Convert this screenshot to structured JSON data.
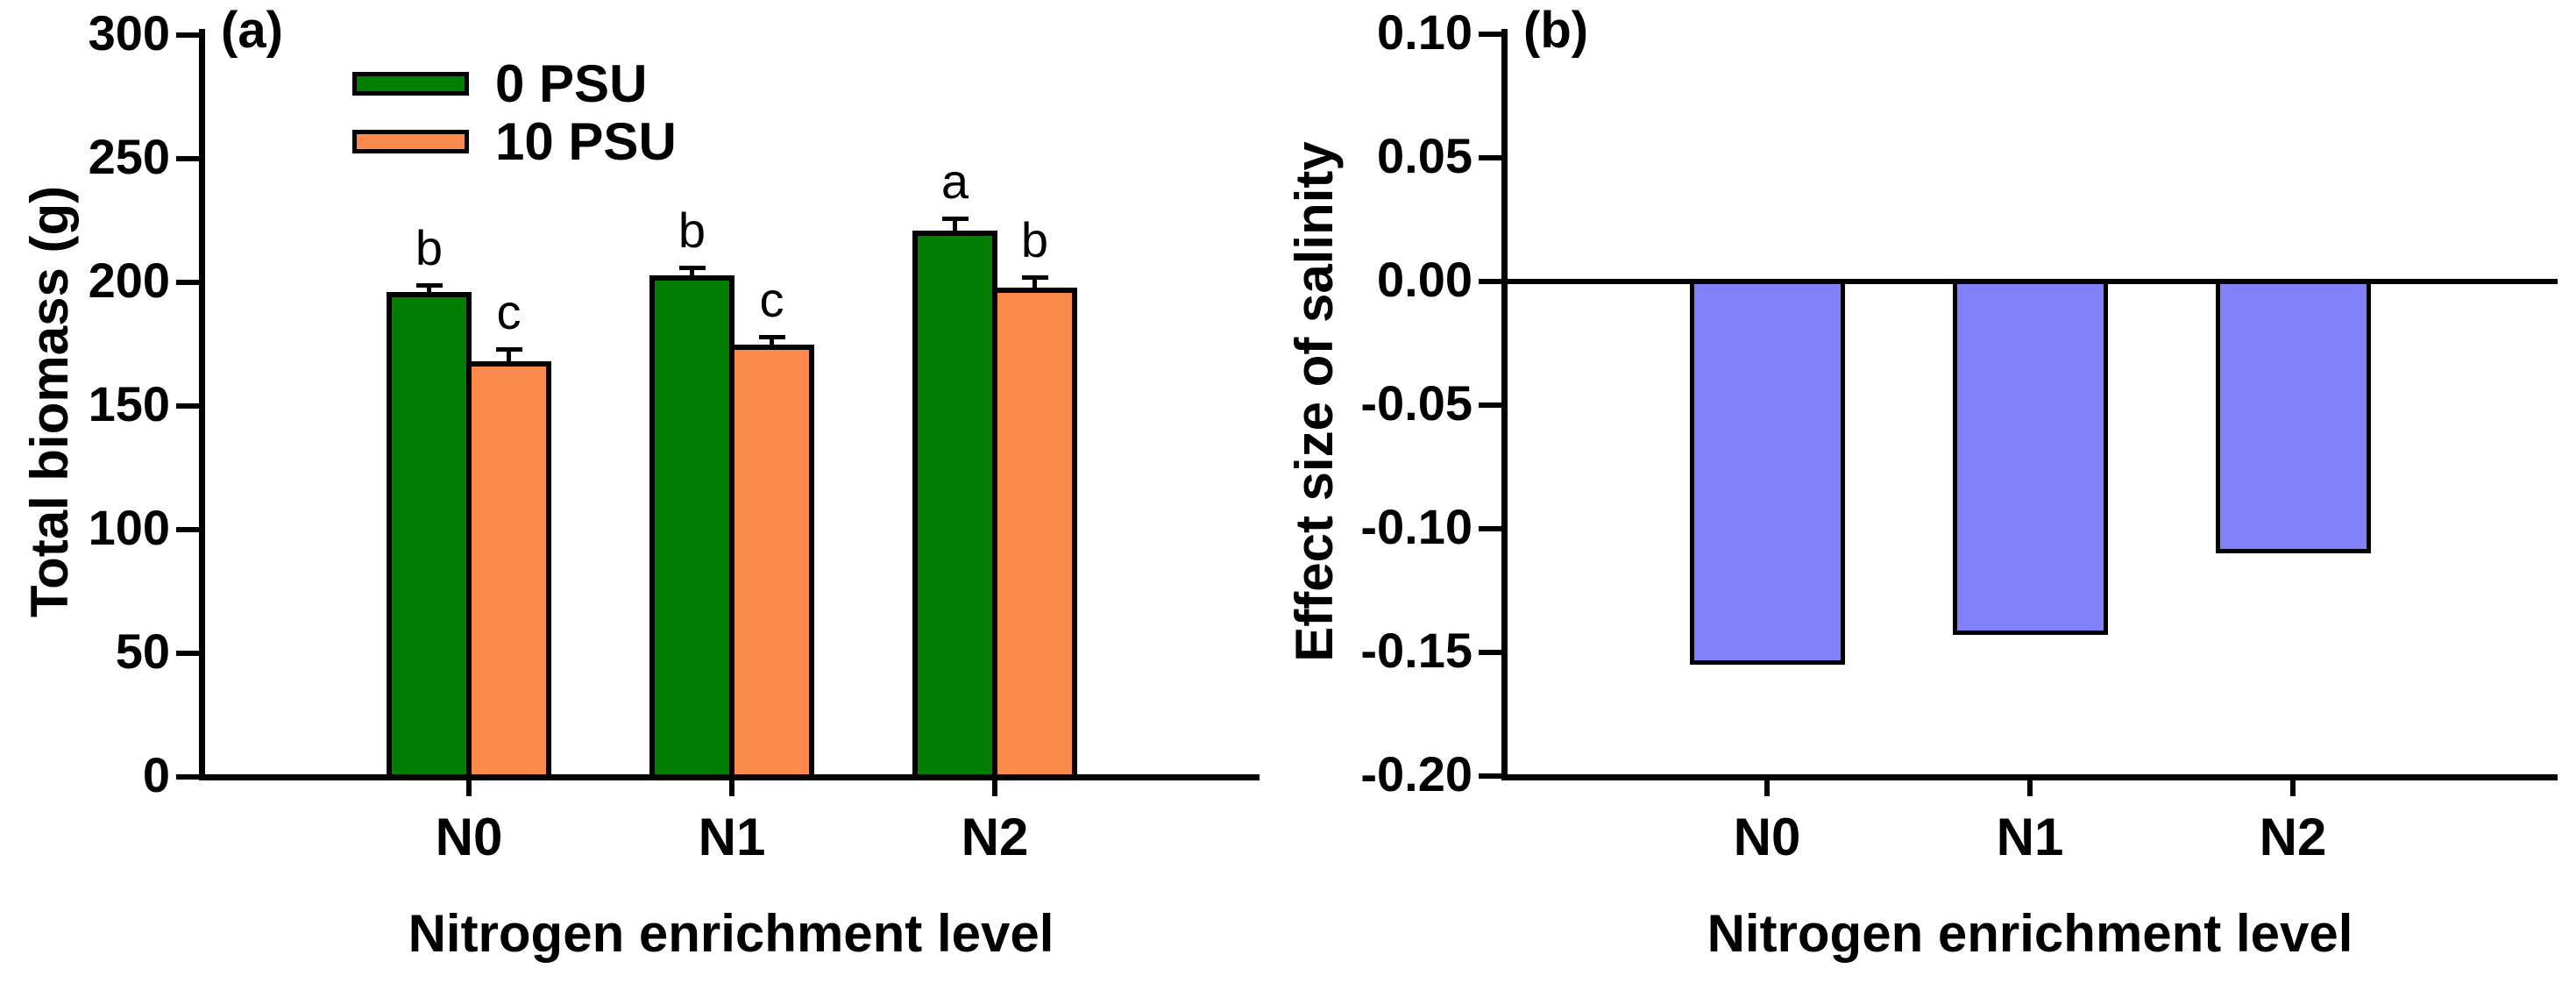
{
  "figure_title": "",
  "chart_data": [
    {
      "type": "bar",
      "panel_label": "(a)",
      "categories": [
        "N0",
        "N1",
        "N2"
      ],
      "series": [
        {
          "name": "0 PSU",
          "color": "#027e02",
          "values": [
            196,
            203,
            221
          ],
          "errors": [
            3,
            3,
            5
          ],
          "sig_letters": [
            "b",
            "b",
            "a"
          ]
        },
        {
          "name": "10 PSU",
          "color": "#fc8a4c",
          "values": [
            168,
            175,
            198
          ],
          "errors": [
            5,
            3,
            4
          ],
          "sig_letters": [
            "c",
            "c",
            "b"
          ]
        }
      ],
      "xlabel": "Nitrogen enrichment level",
      "ylabel": "Total biomass (g)",
      "ylim": [
        0,
        300
      ],
      "yticks": [
        300,
        250,
        200,
        150,
        100,
        50,
        0
      ],
      "ytick_labels": [
        "300",
        "250",
        "200",
        "150",
        "100",
        "50",
        "0"
      ],
      "legend_position": "top-left-inside",
      "grid": false,
      "error_bars": true
    },
    {
      "type": "bar",
      "panel_label": "(b)",
      "categories": [
        "N0",
        "N1",
        "N2"
      ],
      "series": [
        {
          "name": "Effect size of salinity",
          "color": "#8181fa",
          "values": [
            -0.155,
            -0.143,
            -0.11
          ],
          "errors": [],
          "sig_letters": []
        }
      ],
      "xlabel": "Nitrogen enrichment level",
      "ylabel": "Effect size of salinity",
      "ylim": [
        -0.2,
        0.1
      ],
      "yticks": [
        0.1,
        0.05,
        0.0,
        -0.05,
        -0.1,
        -0.15,
        -0.2
      ],
      "ytick_labels": [
        "0.10",
        "0.05",
        "0.00",
        "-0.05",
        "-0.10",
        "-0.15",
        "-0.20"
      ],
      "zero_line": true,
      "legend_position": "none",
      "grid": false,
      "error_bars": false
    }
  ]
}
